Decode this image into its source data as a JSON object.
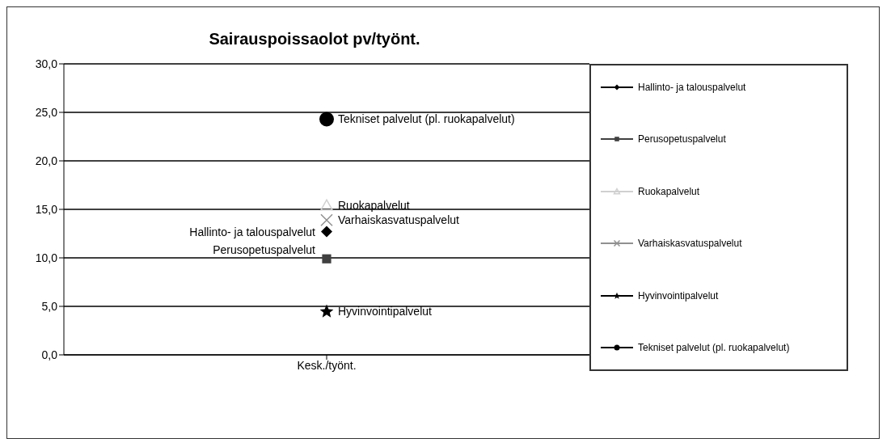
{
  "chart_data": {
    "type": "line",
    "title": "Sairauspoissaolot pv/työnt.",
    "categories": [
      "Kesk./työnt."
    ],
    "series": [
      {
        "name": "Hallinto- ja talouspalvelut",
        "color": "#000000",
        "marker": "diamond",
        "values": [
          12.7
        ]
      },
      {
        "name": "Perusopetuspalvelut",
        "color": "#404040",
        "marker": "square",
        "values": [
          9.9
        ]
      },
      {
        "name": "Ruokapalvelut",
        "color": "#d0d0d0",
        "marker": "triangle",
        "values": [
          15.4
        ]
      },
      {
        "name": "Varhaiskasvatuspalvelut",
        "color": "#909090",
        "marker": "cross",
        "values": [
          13.9
        ]
      },
      {
        "name": "Hyvinvointipalvelut",
        "color": "#000000",
        "marker": "star",
        "values": [
          4.5
        ]
      },
      {
        "name": "Tekniset palvelut (pl. ruokapalvelut)",
        "color": "#000000",
        "marker": "circle",
        "values": [
          24.3
        ]
      }
    ],
    "ylim": [
      0,
      30
    ],
    "yticks": [
      {
        "value": 0,
        "label": "0,0"
      },
      {
        "value": 5,
        "label": "5,0"
      },
      {
        "value": 10,
        "label": "10,0"
      },
      {
        "value": 15,
        "label": "15,0"
      },
      {
        "value": 20,
        "label": "20,0"
      },
      {
        "value": 25,
        "label": "25,0"
      },
      {
        "value": 30,
        "label": "30,0"
      }
    ],
    "grid": "y",
    "legend": "right"
  }
}
